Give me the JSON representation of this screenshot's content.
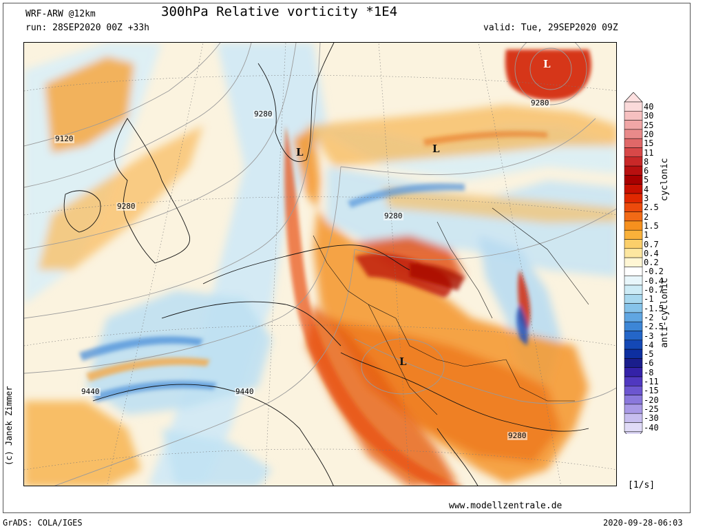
{
  "header": {
    "model": "WRF-ARW @12km",
    "title": "300hPa Relative vorticity *1E4",
    "run": "run: 28SEP2020 00Z +33h",
    "valid": "valid: Tue, 29SEP2020 09Z"
  },
  "footer": {
    "website": "www.modellzentrale.de",
    "software": "GrADS: COLA/IGES",
    "timestamp": "2020-09-28-06:03",
    "copyright": "(c) Janek Zimmer"
  },
  "colorbar": {
    "unit": "[1/s]",
    "cyclonic_label": "cyclonic",
    "anticyclonic_label": "anti-cyclonic",
    "levels": [
      "40",
      "30",
      "25",
      "20",
      "15",
      "11",
      "8",
      "6",
      "5",
      "4",
      "3",
      "2.5",
      "2",
      "1.5",
      "1",
      "0.7",
      "0.4",
      "0.2",
      "-0.2",
      "-0.4",
      "-0.7",
      "-1",
      "-1.5",
      "-2",
      "-2.5",
      "-3",
      "-4",
      "-5",
      "-6",
      "-8",
      "-11",
      "-15",
      "-20",
      "-25",
      "-30",
      "-40"
    ],
    "colors": [
      "#fbdada",
      "#f6c0c0",
      "#f0a6a6",
      "#e98a8a",
      "#e06868",
      "#d84848",
      "#c92828",
      "#b81010",
      "#a80000",
      "#c81000",
      "#e02800",
      "#ec4a0c",
      "#f26a16",
      "#f6901e",
      "#f9b13a",
      "#fbcf6a",
      "#fde7a0",
      "#fff6d4",
      "#ffffff",
      "#e8f6fb",
      "#cdebf6",
      "#a8d8ef",
      "#86c3ea",
      "#60a6e2",
      "#3d86d6",
      "#2466c8",
      "#1448b5",
      "#0d2fa0",
      "#1a1e8c",
      "#3422a8",
      "#5038c0",
      "#6c56d0",
      "#8a78dc",
      "#a99ae6",
      "#c7beef",
      "#e0dbf7"
    ],
    "top_color": "#fde0e0",
    "bottom_color": "#dcd6f6"
  },
  "map": {
    "contour_labels": [
      {
        "text": "9120"
      },
      {
        "text": "9280"
      },
      {
        "text": "9280"
      },
      {
        "text": "9280"
      },
      {
        "text": "9280"
      },
      {
        "text": "9280"
      },
      {
        "text": "9440"
      },
      {
        "text": "9440"
      }
    ],
    "pressure_centers": [
      {
        "text": "L"
      },
      {
        "text": "L"
      },
      {
        "text": "L"
      },
      {
        "text": "L"
      }
    ]
  }
}
